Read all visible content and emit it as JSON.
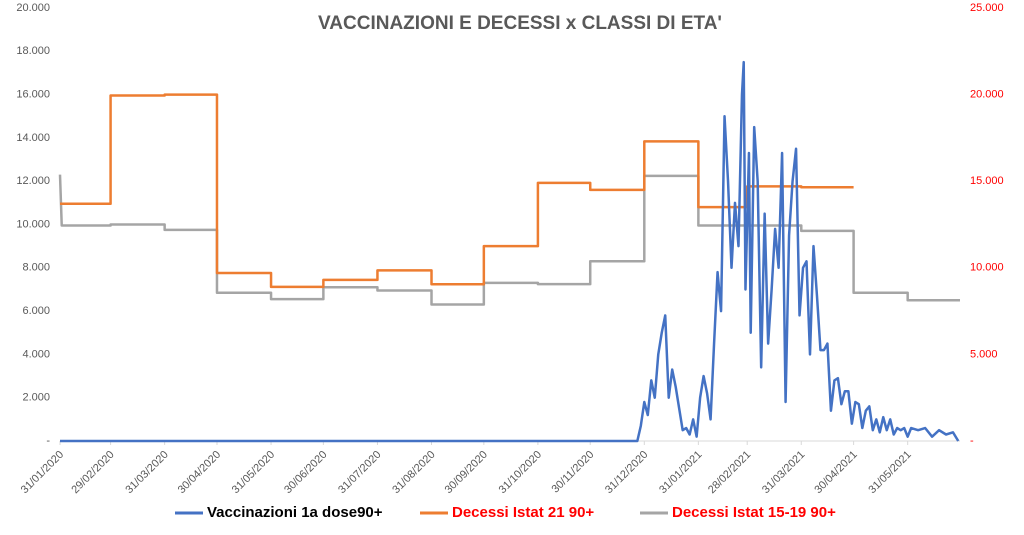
{
  "chart_data": {
    "type": "line",
    "title": "VACCINAZIONI E DECESSI x CLASSI DI ETA'",
    "xlim": [
      "31/01/2020",
      "30/06/2021"
    ],
    "xticks": [
      "31/01/2020",
      "29/02/2020",
      "31/03/2020",
      "30/04/2020",
      "31/05/2020",
      "30/06/2020",
      "31/07/2020",
      "31/08/2020",
      "30/09/2020",
      "31/10/2020",
      "30/11/2020",
      "31/12/2020",
      "31/01/2021",
      "28/02/2021",
      "31/03/2021",
      "30/04/2021",
      "31/05/2021"
    ],
    "ylim": [
      0,
      20000
    ],
    "yticks": [
      {
        "value": 0,
        "label": "-"
      },
      {
        "value": 2000,
        "label": "2.000"
      },
      {
        "value": 4000,
        "label": "4.000"
      },
      {
        "value": 6000,
        "label": "6.000"
      },
      {
        "value": 8000,
        "label": "8.000"
      },
      {
        "value": 10000,
        "label": "10.000"
      },
      {
        "value": 12000,
        "label": "12.000"
      },
      {
        "value": 14000,
        "label": "14.000"
      },
      {
        "value": 16000,
        "label": "16.000"
      },
      {
        "value": 18000,
        "label": "18.000"
      },
      {
        "value": 20000,
        "label": "20.000"
      }
    ],
    "y2lim": [
      0,
      25000
    ],
    "y2ticks": [
      {
        "value": 0,
        "label": "-"
      },
      {
        "value": 5000,
        "label": "5.000"
      },
      {
        "value": 10000,
        "label": "10.000"
      },
      {
        "value": 15000,
        "label": "15.000"
      },
      {
        "value": 20000,
        "label": "20.000"
      },
      {
        "value": 25000,
        "label": "25.000"
      }
    ],
    "y2_color": "#ff0000",
    "grid": false,
    "series": [
      {
        "name": "Vaccinazioni 1a dose90+",
        "color": "#4472c4",
        "legend_color": "#000000",
        "x": [
          "31/01/2020",
          "27/12/2020",
          "29/12/2020",
          "31/12/2020",
          "02/01/2021",
          "04/01/2021",
          "06/01/2021",
          "08/01/2021",
          "10/01/2021",
          "12/01/2021",
          "14/01/2021",
          "16/01/2021",
          "18/01/2021",
          "20/01/2021",
          "22/01/2021",
          "24/01/2021",
          "26/01/2021",
          "28/01/2021",
          "30/01/2021",
          "01/02/2021",
          "03/02/2021",
          "05/02/2021",
          "07/02/2021",
          "09/02/2021",
          "11/02/2021",
          "13/02/2021",
          "15/02/2021",
          "17/02/2021",
          "19/02/2021",
          "21/02/2021",
          "23/02/2021",
          "25/02/2021",
          "26/02/2021",
          "27/02/2021",
          "01/03/2021",
          "02/03/2021",
          "04/03/2021",
          "06/03/2021",
          "08/03/2021",
          "10/03/2021",
          "12/03/2021",
          "14/03/2021",
          "16/03/2021",
          "18/03/2021",
          "20/03/2021",
          "22/03/2021",
          "24/03/2021",
          "26/03/2021",
          "28/03/2021",
          "30/03/2021",
          "01/04/2021",
          "03/04/2021",
          "05/04/2021",
          "07/04/2021",
          "09/04/2021",
          "11/04/2021",
          "13/04/2021",
          "15/04/2021",
          "17/04/2021",
          "19/04/2021",
          "21/04/2021",
          "23/04/2021",
          "25/04/2021",
          "27/04/2021",
          "29/04/2021",
          "01/05/2021",
          "03/05/2021",
          "05/05/2021",
          "07/05/2021",
          "09/05/2021",
          "11/05/2021",
          "13/05/2021",
          "15/05/2021",
          "17/05/2021",
          "19/05/2021",
          "21/05/2021",
          "23/05/2021",
          "25/05/2021",
          "27/05/2021",
          "29/05/2021",
          "31/05/2021",
          "02/06/2021",
          "06/06/2021",
          "10/06/2021",
          "14/06/2021",
          "18/06/2021",
          "22/06/2021",
          "26/06/2021",
          "29/06/2021"
        ],
        "values": [
          0,
          0,
          700,
          1800,
          1200,
          2800,
          2000,
          4000,
          5000,
          5800,
          2000,
          3300,
          2500,
          1500,
          500,
          600,
          300,
          1000,
          200,
          2000,
          3000,
          2200,
          1000,
          4500,
          7800,
          6000,
          15000,
          12000,
          8000,
          11000,
          9000,
          16000,
          17500,
          7000,
          13300,
          5000,
          14500,
          12000,
          3400,
          10500,
          4500,
          7000,
          9800,
          8000,
          13300,
          1800,
          9500,
          12000,
          13500,
          5800,
          8000,
          8300,
          4000,
          9000,
          6700,
          4200,
          4200,
          4500,
          1400,
          2800,
          2900,
          1700,
          2300,
          2300,
          800,
          1800,
          1700,
          600,
          1400,
          1600,
          500,
          1000,
          400,
          1100,
          500,
          1000,
          300,
          600,
          500,
          600,
          200,
          600,
          500,
          600,
          200,
          500,
          300,
          400,
          0
        ]
      },
      {
        "name": "Decessi Istat 21 90+",
        "color": "#ed7d31",
        "legend_color": "#ff0000",
        "axis": "y2",
        "x": [
          "31/01/2020",
          "29/02/2020",
          "29/02/2020",
          "31/03/2020",
          "31/03/2020",
          "30/04/2020",
          "30/04/2020",
          "31/05/2020",
          "31/05/2020",
          "30/06/2020",
          "30/06/2020",
          "31/07/2020",
          "31/07/2020",
          "31/08/2020",
          "31/08/2020",
          "30/09/2020",
          "30/09/2020",
          "31/10/2020",
          "31/10/2020",
          "30/11/2020",
          "30/11/2020",
          "31/12/2020",
          "31/12/2020",
          "31/01/2021",
          "31/01/2021",
          "28/02/2021",
          "28/02/2021",
          "31/03/2021",
          "31/03/2021",
          "30/04/2021"
        ],
        "values": [
          13700,
          13700,
          19950,
          19950,
          20000,
          20000,
          9700,
          9700,
          8900,
          8900,
          9300,
          9300,
          9850,
          9850,
          9050,
          9050,
          11250,
          11250,
          14900,
          14900,
          14500,
          14500,
          17300,
          17300,
          13500,
          13500,
          14700,
          14700,
          14650,
          14650
        ]
      },
      {
        "name": "Decessi Istat 15-19 90+",
        "color": "#a5a5a5",
        "legend_color": "#ff0000",
        "axis": "y2",
        "x": [
          "31/01/2020",
          "01/02/2020",
          "29/02/2020",
          "29/02/2020",
          "31/03/2020",
          "31/03/2020",
          "30/04/2020",
          "30/04/2020",
          "31/05/2020",
          "31/05/2020",
          "30/06/2020",
          "30/06/2020",
          "31/07/2020",
          "31/07/2020",
          "31/08/2020",
          "31/08/2020",
          "30/09/2020",
          "30/09/2020",
          "31/10/2020",
          "31/10/2020",
          "30/11/2020",
          "30/11/2020",
          "31/12/2020",
          "31/12/2020",
          "31/01/2021",
          "31/01/2021",
          "28/02/2021",
          "28/02/2021",
          "31/03/2021",
          "31/03/2021",
          "30/04/2021",
          "30/04/2021",
          "31/05/2021",
          "31/05/2021",
          "30/06/2021"
        ],
        "values": [
          15380,
          12440,
          12440,
          12500,
          12500,
          12190,
          12190,
          8560,
          8560,
          8190,
          8190,
          8880,
          8880,
          8690,
          8690,
          7880,
          7880,
          9130,
          9130,
          9060,
          9060,
          10380,
          10380,
          15310,
          15310,
          12440,
          12440,
          12440,
          12440,
          12130,
          12130,
          8560,
          8560,
          8130,
          8130
        ]
      }
    ]
  }
}
